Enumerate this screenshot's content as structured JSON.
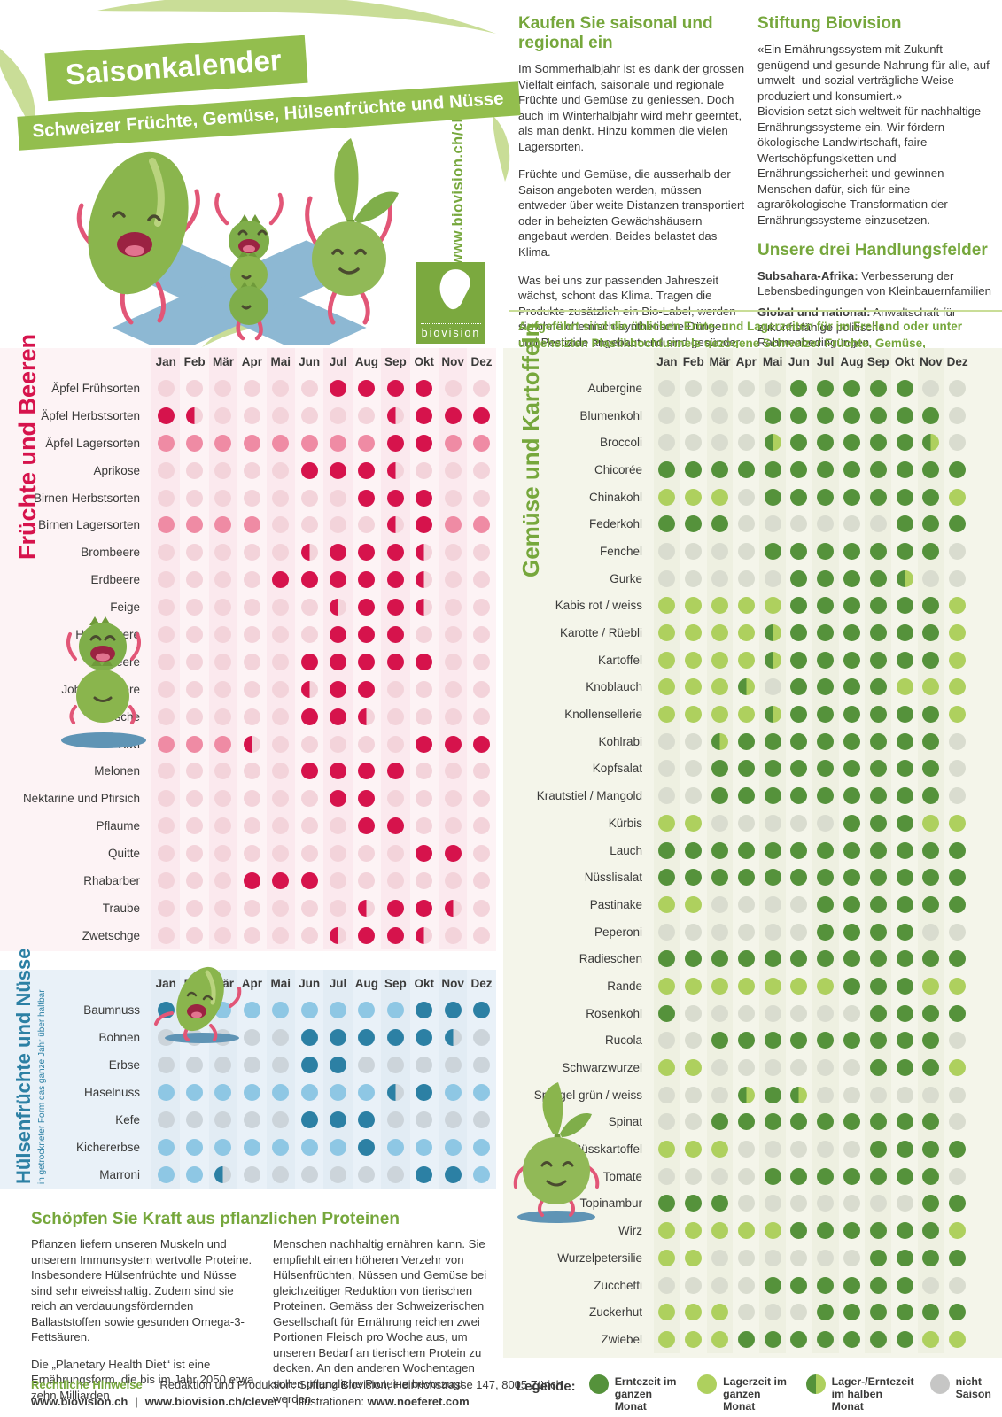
{
  "header": {
    "title": "Saisonkalender",
    "subtitle": "Schweizer Früchte, Gemüse, Hülsenfrüchte und Nüsse",
    "url_vertical": "www.biovision.ch/clever",
    "logo_word": "biovision"
  },
  "intro": {
    "col1": {
      "heading": "Kaufen Sie saisonal und regional ein",
      "paragraphs": [
        "Im Sommerhalbjahr ist es dank der grossen Vielfalt einfach, saisonale und regionale Früchte und Gemüse zu geniessen. Doch auch im Winterhalbjahr wird mehr geerntet, als man denkt. Hinzu kommen die vielen Lagersorten.",
        "Früchte und Gemüse, die ausserhalb der Saison angeboten werden, müssen entweder über weite Distanzen transportiert oder in beheizten Gewächshäusern angebaut werden. Beides belastet das Klima.",
        "Was bei uns zur passenden Jahreszeit wächst, schont das Klima. Tragen die Produkte zusätzlich ein Bio-Label, werden sie ohne chemisch-synthetische Dünger und Pestizide angebaut und sind gesünder für die Umwelt und die Menschen."
      ]
    },
    "col2": {
      "heading": "Stiftung Biovision",
      "quote": "«Ein Ernährungssystem mit Zukunft – genügend und gesunde Nahrung für alle, auf umwelt- und sozial-verträgliche Weise produziert und konsumiert.»",
      "body": "Biovision setzt sich weltweit für nachhaltige Ernährungssysteme ein. Wir fördern ökologische Landwirtschaft, faire Wertschöpfungsketten und Ernährungssicherheit und gewinnen Menschen dafür, sich für eine agrarökologische Transformation der Ernährungssysteme einzusetzen."
    },
    "fields": {
      "heading": "Unsere drei Handlungsfelder",
      "items": [
        {
          "label": "Subsahara-Afrika:",
          "text": "Verbesserung der Lebensbedingungen von Kleinbauernfamilien"
        },
        {
          "label": "Global und national:",
          "text": "Anwaltschaft für zukunftsfähige politische Rahmenbedingungen"
        },
        {
          "label": "Schweiz:",
          "text": "Verantwortung für die Umsetzung der Agenda 2030"
        }
      ]
    },
    "note": "Aufgeführt sind die üblichen Ernte- und Lagerzeiten für im Freiland oder unter ungeheizten Plastikhochtunnels gezogene Schweizer Früchte, Gemüse, Hülsenfrüchte und Nüsse."
  },
  "months": [
    "Jan",
    "Feb",
    "Mär",
    "Apr",
    "Mai",
    "Jun",
    "Jul",
    "Aug",
    "Sep",
    "Okt",
    "Nov",
    "Dez"
  ],
  "cell_states": {
    "E": "Erntezeit im ganzen Monat",
    "L": "Lagerzeit im ganzen Monat",
    "H": "Lager-/Erntezeit im halben Monat",
    "N": "nicht Saison"
  },
  "fruits": {
    "title": "Früchte und Beeren",
    "rows": [
      {
        "label": "Äpfel Frühsorten",
        "cells": "NNNNNNEEEENN"
      },
      {
        "label": "Äpfel Herbstsorten",
        "cells": "EHNNNNNNHEEE"
      },
      {
        "label": "Äpfel Lagersorten",
        "cells": "LLLLLLLLEELL"
      },
      {
        "label": "Aprikose",
        "cells": "NNNNNEEEHNNN"
      },
      {
        "label": "Birnen Herbstsorten",
        "cells": "NNNNNNNEEENN"
      },
      {
        "label": "Birnen Lagersorten",
        "cells": "LLLLNNNNHELL"
      },
      {
        "label": "Brombeere",
        "cells": "NNNNNHEEEHNN"
      },
      {
        "label": "Erdbeere",
        "cells": "NNNNEEEEEHNN"
      },
      {
        "label": "Feige",
        "cells": "NNNNNNHEEHNN"
      },
      {
        "label": "Heidelbeere",
        "cells": "NNNNNNEEENNN"
      },
      {
        "label": "Himbeere",
        "cells": "NNNNNEEEEENN"
      },
      {
        "label": "Johannisbeere",
        "cells": "NNNNNHEENNNN"
      },
      {
        "label": "Kirsche",
        "cells": "NNNNNEEHNNNN"
      },
      {
        "label": "Kiwi",
        "cells": "LLLHNNNNNEEE"
      },
      {
        "label": "Melonen",
        "cells": "NNNNNEEEENNN"
      },
      {
        "label": "Nektarine und Pfirsich",
        "cells": "NNNNNNEENNNN"
      },
      {
        "label": "Pflaume",
        "cells": "NNNNNNNEENNN"
      },
      {
        "label": "Quitte",
        "cells": "NNNNNNNNNEEN"
      },
      {
        "label": "Rhabarber",
        "cells": "NNNEEENNNNNN"
      },
      {
        "label": "Traube",
        "cells": "NNNNNNNHEEHN"
      },
      {
        "label": "Zwetschge",
        "cells": "NNNNNNHEEHNN"
      }
    ]
  },
  "legumes": {
    "title": "Hülsenfrüchte und Nüsse",
    "subtitle": "in getrockneter Form das ganze Jahr über haltbar",
    "rows": [
      {
        "label": "Baumnuss",
        "cells": "EELLLLLLLEEE"
      },
      {
        "label": "Bohnen",
        "cells": "NNNNNEEEEEHN"
      },
      {
        "label": "Erbse",
        "cells": "NNNNNEENNNNN"
      },
      {
        "label": "Haselnuss",
        "cells": "LLLLLLLLHELL"
      },
      {
        "label": "Kefe",
        "cells": "NNNNNEEENNNN"
      },
      {
        "label": "Kichererbse",
        "cells": "LLLLLLLELLLL"
      },
      {
        "label": "Marroni",
        "cells": "LLHNNNNNNEEL"
      }
    ]
  },
  "vegetables": {
    "title": "Gemüse und Kartoffeln",
    "rows": [
      {
        "label": "Aubergine",
        "cells": "NNNNNEEEEENN"
      },
      {
        "label": "Blumenkohl",
        "cells": "NNNNEEEEEEEN"
      },
      {
        "label": "Broccoli",
        "cells": "NNNNHEEEEEHN"
      },
      {
        "label": "Chicorée",
        "cells": "EEEEEEEEEEEE"
      },
      {
        "label": "Chinakohl",
        "cells": "LLLNEEEEEEEL"
      },
      {
        "label": "Federkohl",
        "cells": "EEENNNNNNEEE"
      },
      {
        "label": "Fenchel",
        "cells": "NNNNEEEEEEEN"
      },
      {
        "label": "Gurke",
        "cells": "NNNNNEEEEHNN"
      },
      {
        "label": "Kabis rot / weiss",
        "cells": "LLLLLEEEEEEL"
      },
      {
        "label": "Karotte / Rüebli",
        "cells": "LLLLHEEEEEEL"
      },
      {
        "label": "Kartoffel",
        "cells": "LLLLHEEEEEEL"
      },
      {
        "label": "Knoblauch",
        "cells": "LLLHNEEEELLL"
      },
      {
        "label": "Knollensellerie",
        "cells": "LLLLHEEEEEEL"
      },
      {
        "label": "Kohlrabi",
        "cells": "NNHEEEEEEEEN"
      },
      {
        "label": "Kopfsalat",
        "cells": "NNEEEEEEEEEN"
      },
      {
        "label": "Krautstiel / Mangold",
        "cells": "NNEEEEEEEEEN"
      },
      {
        "label": "Kürbis",
        "cells": "LLNNNNNEEELL"
      },
      {
        "label": "Lauch",
        "cells": "EEEEEEEEEEEE"
      },
      {
        "label": "Nüsslisalat",
        "cells": "EEEEEEEEEEEE"
      },
      {
        "label": "Pastinake",
        "cells": "LLNNNNEEEEEE"
      },
      {
        "label": "Peperoni",
        "cells": "NNNNNNEEEENN"
      },
      {
        "label": "Radieschen",
        "cells": "EEEEEEEEEEEE"
      },
      {
        "label": "Rande",
        "cells": "LLLLLLLEEELL"
      },
      {
        "label": "Rosenkohl",
        "cells": "ENNNNNNNEEEE"
      },
      {
        "label": "Rucola",
        "cells": "NNEEEEEEEEEN"
      },
      {
        "label": "Schwarzwurzel",
        "cells": "LLNNNNNNEEEL"
      },
      {
        "label": "Spargel grün / weiss",
        "cells": "NNNHEHNNNNNN"
      },
      {
        "label": "Spinat",
        "cells": "NNEEEEEEEEEN"
      },
      {
        "label": "Süsskartoffel",
        "cells": "LLLNNNNNEEEE"
      },
      {
        "label": "Tomate",
        "cells": "NNNNEEEEEEEN"
      },
      {
        "label": "Topinambur",
        "cells": "EEENNNNNNNEE"
      },
      {
        "label": "Wirz",
        "cells": "LLLLLEEEEEEL"
      },
      {
        "label": "Wurzelpetersilie",
        "cells": "LLNNNNNNEEEE"
      },
      {
        "label": "Zucchetti",
        "cells": "NNNNEEEEEENN"
      },
      {
        "label": "Zuckerhut",
        "cells": "LLLNNNEEEEEE"
      },
      {
        "label": "Zwiebel",
        "cells": "LLLEEEEEEELL"
      }
    ]
  },
  "proteins": {
    "heading": "Schöpfen Sie Kraft aus pflanzlichen Proteinen",
    "col1": [
      "Pflanzen liefern unseren Muskeln und unserem Immunsystem wertvolle Proteine. Insbesondere Hülsenfrüchte und Nüsse sind sehr eiweisshaltig. Zudem sind sie reich an verdauungsfördernden Ballaststoffen sowie gesunden Omega-3-Fettsäuren.",
      "Die „Planetary Health Diet“ ist eine Ernährungsform, die bis im Jahr 2050 etwa zehn Milliarden"
    ],
    "col2": [
      "Menschen nachhaltig ernähren kann. Sie empfiehlt einen höheren Verzehr von Hülsenfrüchten, Nüssen und Gemüse bei gleichzeitiger Reduktion von tierischen Proteinen. Gemäss der Schweizerischen Gesellschaft für Ernährung reichen zwei Portionen Fleisch pro Woche aus, um unseren Bedarf an tierischem Protein zu decken. An den anderen Wochentagen sollen pflanzliche Proteine bevorzugt werden."
    ]
  },
  "legend": {
    "label": "Legende:",
    "items": [
      {
        "key": "E",
        "text": "Erntezeit im ganzen Monat"
      },
      {
        "key": "L",
        "text": "Lagerzeit im ganzen Monat"
      },
      {
        "key": "H",
        "text": "Lager-/Erntezeit im halben Monat"
      },
      {
        "key": "N",
        "text": "nicht Saison"
      }
    ]
  },
  "footer": {
    "legal_label": "Rechtliche Hinweise",
    "production": "Redaktion und Produktion: Stiftung Biovision, Heinrichstrasse 147, 8005 Zürich",
    "link_a": "www.biovision.ch",
    "link_b": "www.biovision.ch/clever",
    "illu_label": "Illustrationen:",
    "illu_link": "www.noeferet.com"
  },
  "colors": {
    "accent_green": "#76a73c",
    "banner_green": "#93be4e",
    "deco_green": "#c9dd97",
    "fruit": {
      "harvest": "#d6134c",
      "storage": "#ef8ba4",
      "off": "#f3d3da"
    },
    "veg": {
      "harvest": "#55923b",
      "storage": "#aed05e",
      "off": "#d9dccf"
    },
    "leg": {
      "harvest": "#2c80a4",
      "storage": "#8ec7e4",
      "off": "#ccd4da"
    },
    "legend_off": "#c6c6c5"
  }
}
